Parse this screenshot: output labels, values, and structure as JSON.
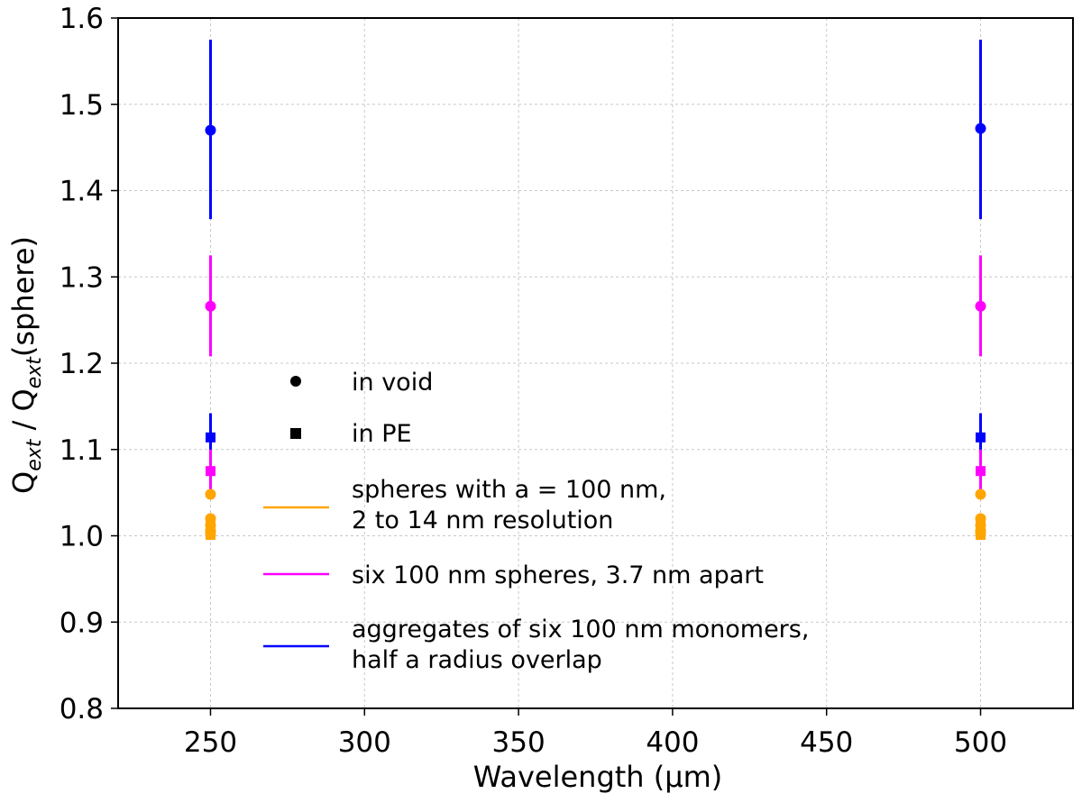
{
  "chart_data": {
    "type": "scatter",
    "title": "",
    "xlabel": "Wavelength (μm)",
    "ylabel_parts": [
      "Q",
      "ext",
      " / Q",
      "ext",
      "(sphere)"
    ],
    "xlim": [
      220,
      530
    ],
    "ylim": [
      0.8,
      1.6
    ],
    "xticks": [
      250,
      300,
      350,
      400,
      450,
      500
    ],
    "yticks": [
      0.8,
      0.9,
      1.0,
      1.1,
      1.2,
      1.3,
      1.4,
      1.5,
      1.6
    ],
    "xtick_labels": [
      "250",
      "300",
      "350",
      "400",
      "450",
      "500"
    ],
    "ytick_labels": [
      "0.8",
      "0.9",
      "1.0",
      "1.1",
      "1.2",
      "1.3",
      "1.4",
      "1.5",
      "1.6"
    ],
    "grid": true,
    "colors": {
      "orange": "#ffa500",
      "magenta": "#ff00ff",
      "blue": "#0000ff"
    },
    "series": [
      {
        "name": "aggregates of six 100 nm monomers, half a radius overlap",
        "color": "#0000ff",
        "marker": "circle",
        "medium": "in void",
        "points": [
          {
            "x": 250,
            "y": 1.47,
            "ylow": 1.367,
            "yhigh": 1.575
          },
          {
            "x": 500,
            "y": 1.472,
            "ylow": 1.367,
            "yhigh": 1.575
          }
        ]
      },
      {
        "name": "six 100 nm spheres, 3.7 nm apart",
        "color": "#ff00ff",
        "marker": "circle",
        "medium": "in void",
        "points": [
          {
            "x": 250,
            "y": 1.266,
            "ylow": 1.208,
            "yhigh": 1.325
          },
          {
            "x": 500,
            "y": 1.266,
            "ylow": 1.208,
            "yhigh": 1.325
          }
        ]
      },
      {
        "name": "aggregates of six 100 nm monomers, half a radius overlap",
        "color": "#0000ff",
        "marker": "square",
        "medium": "in PE",
        "points": [
          {
            "x": 250,
            "y": 1.114,
            "ylow": 1.085,
            "yhigh": 1.142
          },
          {
            "x": 500,
            "y": 1.114,
            "ylow": 1.085,
            "yhigh": 1.142
          }
        ]
      },
      {
        "name": "six 100 nm spheres, 3.7 nm apart",
        "color": "#ff00ff",
        "marker": "square",
        "medium": "in PE",
        "points": [
          {
            "x": 250,
            "y": 1.075,
            "ylow": 1.05,
            "yhigh": 1.1
          },
          {
            "x": 500,
            "y": 1.075,
            "ylow": 1.05,
            "yhigh": 1.1
          }
        ]
      },
      {
        "name": "spheres with a = 100 nm, 2 to 14 nm resolution",
        "color": "#ffa500",
        "marker": "circle",
        "medium": "in void",
        "points": [
          {
            "x": 250,
            "y": 1.048
          },
          {
            "x": 250,
            "y": 1.02
          },
          {
            "x": 250,
            "y": 1.012
          },
          {
            "x": 250,
            "y": 1.006
          },
          {
            "x": 250,
            "y": 1.003
          },
          {
            "x": 500,
            "y": 1.048
          },
          {
            "x": 500,
            "y": 1.02
          },
          {
            "x": 500,
            "y": 1.012
          },
          {
            "x": 500,
            "y": 1.006
          },
          {
            "x": 500,
            "y": 1.003
          }
        ]
      },
      {
        "name": "spheres with a = 100 nm, 2 to 14 nm resolution",
        "color": "#ffa500",
        "marker": "square",
        "medium": "in PE",
        "points": [
          {
            "x": 250,
            "y": 1.016
          },
          {
            "x": 250,
            "y": 1.009
          },
          {
            "x": 250,
            "y": 1.004
          },
          {
            "x": 250,
            "y": 1.001
          },
          {
            "x": 500,
            "y": 1.016
          },
          {
            "x": 500,
            "y": 1.009
          },
          {
            "x": 500,
            "y": 1.004
          },
          {
            "x": 500,
            "y": 1.001
          }
        ]
      }
    ],
    "legend": {
      "placement": "center-left",
      "entries": [
        {
          "kind": "marker",
          "marker": "circle",
          "color": "#000000",
          "label": "in void"
        },
        {
          "kind": "marker",
          "marker": "square",
          "color": "#000000",
          "label": "in PE"
        },
        {
          "kind": "line",
          "color": "#ffa500",
          "lines": [
            "spheres with a = 100 nm,",
            "2 to 14 nm resolution"
          ]
        },
        {
          "kind": "line",
          "color": "#ff00ff",
          "lines": [
            "six 100 nm spheres, 3.7 nm apart"
          ]
        },
        {
          "kind": "line",
          "color": "#0000ff",
          "lines": [
            "aggregates of six 100 nm monomers,",
            "half a radius overlap"
          ]
        }
      ]
    }
  }
}
